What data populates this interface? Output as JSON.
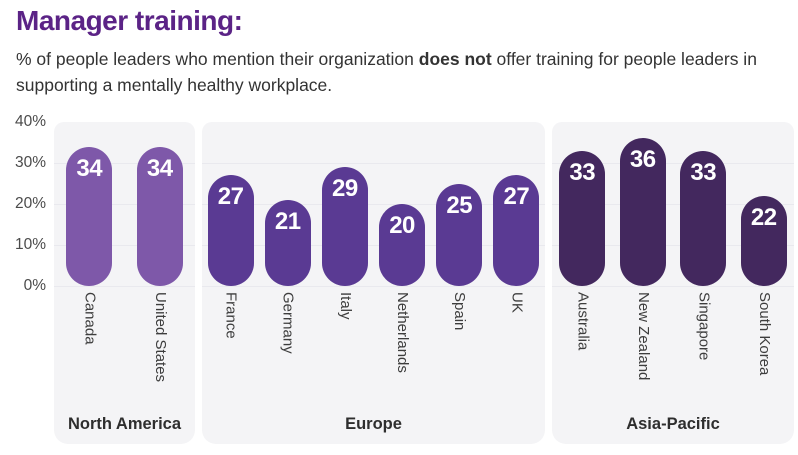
{
  "title": "Manager training:",
  "subtitle": {
    "pre": "% of people leaders who mention their organization ",
    "bold": "does not",
    "post": " offer training for people leaders in supporting a mentally healthy workplace."
  },
  "chart_data": {
    "type": "bar",
    "title": "Manager training:",
    "ylabel": "",
    "xlabel": "",
    "grid": true,
    "value_labels": true,
    "y_axis": {
      "max": 40,
      "min": 0,
      "ticks": [
        {
          "label": "40%",
          "value": 40
        },
        {
          "label": "30%",
          "value": 30
        },
        {
          "label": "20%",
          "value": 20
        },
        {
          "label": "10%",
          "value": 10
        },
        {
          "label": "0%",
          "value": 0
        }
      ]
    },
    "groups": [
      {
        "label": "North America",
        "color": "#7e58a9",
        "categories": [
          "Canada",
          "United States"
        ],
        "values": [
          34,
          34
        ]
      },
      {
        "label": "Europe",
        "color": "#5a3a93",
        "categories": [
          "France",
          "Germany",
          "Italy",
          "Netherlands",
          "Spain",
          "UK"
        ],
        "values": [
          27,
          21,
          29,
          20,
          25,
          27
        ]
      },
      {
        "label": "Asia-Pacific",
        "color": "#43285e",
        "categories": [
          "Australia",
          "New Zealand",
          "Singapore",
          "South Korea"
        ],
        "values": [
          33,
          36,
          33,
          22
        ]
      }
    ]
  },
  "colors": {
    "title": "#5b2386",
    "subtitle_text": "#333333",
    "panel_background": "#f4f4f6",
    "gridline": "#e9e9ee",
    "bar_value_text": "#ffffff"
  }
}
